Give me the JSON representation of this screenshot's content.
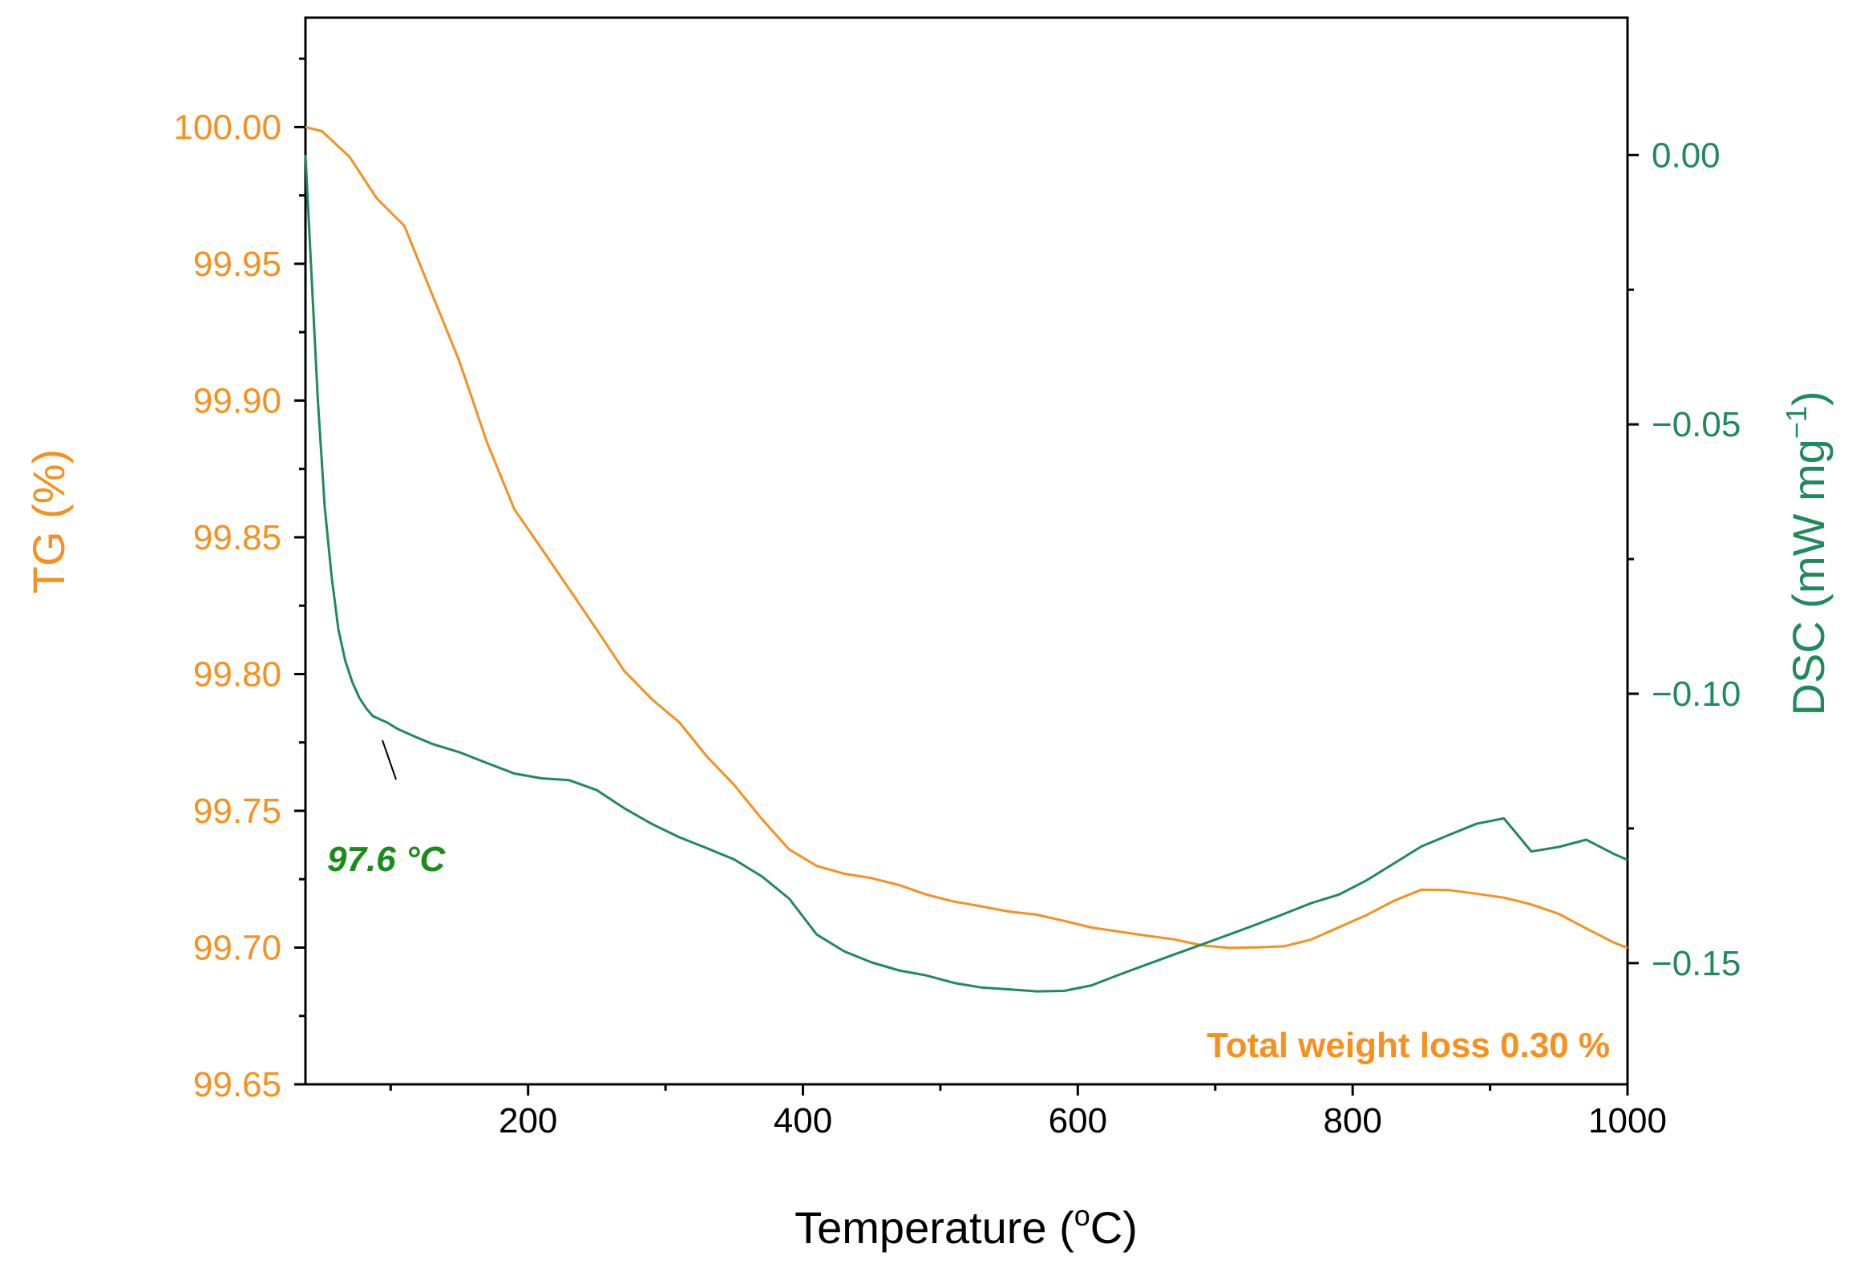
{
  "chart_data": {
    "type": "line",
    "xlabel": "Temperature (",
    "xlabel_sup": "o",
    "xlabel_end": "C)",
    "xlim": [
      38,
      1000
    ],
    "x_ticks": [
      200,
      400,
      600,
      800,
      1000
    ],
    "x_tick_labels": [
      "200",
      "400",
      "600",
      "800",
      "1000"
    ],
    "y_left": {
      "label": "TG (%)",
      "lim": [
        99.65,
        100.04
      ],
      "ticks": [
        99.65,
        99.7,
        99.75,
        99.8,
        99.85,
        99.9,
        99.95,
        100.0
      ],
      "tick_labels": [
        "99.65",
        "99.70",
        "99.75",
        "99.80",
        "99.85",
        "99.90",
        "99.95",
        "100.00"
      ],
      "color": "#f7901e"
    },
    "y_right": {
      "label": "DSC (mW mg",
      "label_sup": "−1",
      "label_end": ")",
      "lim": [
        -0.1725,
        0.0255
      ],
      "ticks": [
        0.0,
        -0.05,
        -0.1,
        -0.15
      ],
      "tick_labels": [
        "0.00",
        "−0.05",
        "−0.10",
        "−0.15"
      ],
      "color": "#1f8a5c"
    },
    "series": [
      {
        "name": "TG",
        "axis": "left",
        "color": "#f7901e",
        "x": [
          38,
          50,
          70,
          90,
          110,
          130,
          150,
          170,
          190,
          210,
          230,
          250,
          270,
          290,
          310,
          330,
          350,
          370,
          390,
          410,
          430,
          450,
          470,
          490,
          510,
          530,
          550,
          570,
          590,
          610,
          630,
          650,
          670,
          690,
          710,
          730,
          750,
          770,
          790,
          810,
          830,
          850,
          870,
          890,
          910,
          930,
          950,
          970,
          990,
          1000
        ],
        "y": [
          100.0,
          99.999,
          99.99,
          99.975,
          99.965,
          99.94,
          99.915,
          99.885,
          99.86,
          99.845,
          99.83,
          99.815,
          99.8,
          99.79,
          99.782,
          99.77,
          99.76,
          99.748,
          99.737,
          99.731,
          99.728,
          99.726,
          99.723,
          99.719,
          99.716,
          99.714,
          99.712,
          99.711,
          99.709,
          99.707,
          99.706,
          99.705,
          99.704,
          99.702,
          99.701,
          99.701,
          99.701,
          99.703,
          99.707,
          99.711,
          99.716,
          99.72,
          99.72,
          99.719,
          99.718,
          99.716,
          99.713,
          99.708,
          99.703,
          99.701
        ]
      },
      {
        "name": "DSC",
        "axis": "right",
        "color": "#1f8a5c",
        "x": [
          38,
          42,
          47,
          52,
          57,
          62,
          67,
          72,
          77,
          82,
          87,
          92,
          97.6,
          105,
          115,
          130,
          150,
          170,
          190,
          210,
          230,
          250,
          270,
          290,
          310,
          330,
          350,
          370,
          390,
          410,
          430,
          450,
          470,
          490,
          510,
          530,
          550,
          570,
          590,
          610,
          630,
          650,
          670,
          690,
          710,
          730,
          750,
          770,
          790,
          810,
          830,
          850,
          870,
          890,
          910,
          920,
          930,
          950,
          970,
          990,
          1000
        ],
        "y": [
          0.0,
          -0.02,
          -0.045,
          -0.065,
          -0.078,
          -0.088,
          -0.094,
          -0.098,
          -0.101,
          -0.103,
          -0.1045,
          -0.105,
          -0.1055,
          -0.1065,
          -0.1075,
          -0.109,
          -0.1105,
          -0.1125,
          -0.1145,
          -0.1155,
          -0.116,
          -0.118,
          -0.1215,
          -0.1245,
          -0.127,
          -0.129,
          -0.131,
          -0.134,
          -0.138,
          -0.1445,
          -0.1475,
          -0.1495,
          -0.151,
          -0.152,
          -0.1535,
          -0.1545,
          -0.155,
          -0.1555,
          -0.1555,
          -0.1545,
          -0.1525,
          -0.1505,
          -0.1485,
          -0.1465,
          -0.1445,
          -0.1425,
          -0.1405,
          -0.1385,
          -0.137,
          -0.1345,
          -0.1315,
          -0.1285,
          -0.1265,
          -0.1245,
          -0.1235,
          -0.1265,
          -0.1295,
          -0.1285,
          -0.127,
          -0.1295,
          -0.1305
        ]
      }
    ],
    "annotations": [
      {
        "text": "97.6 °C",
        "color": "#1a8c1a",
        "x": 97.6,
        "axis": "right",
        "y": -0.1055
      },
      {
        "text": "Total weight loss 0.30 %",
        "color": "#f7901e"
      }
    ]
  }
}
